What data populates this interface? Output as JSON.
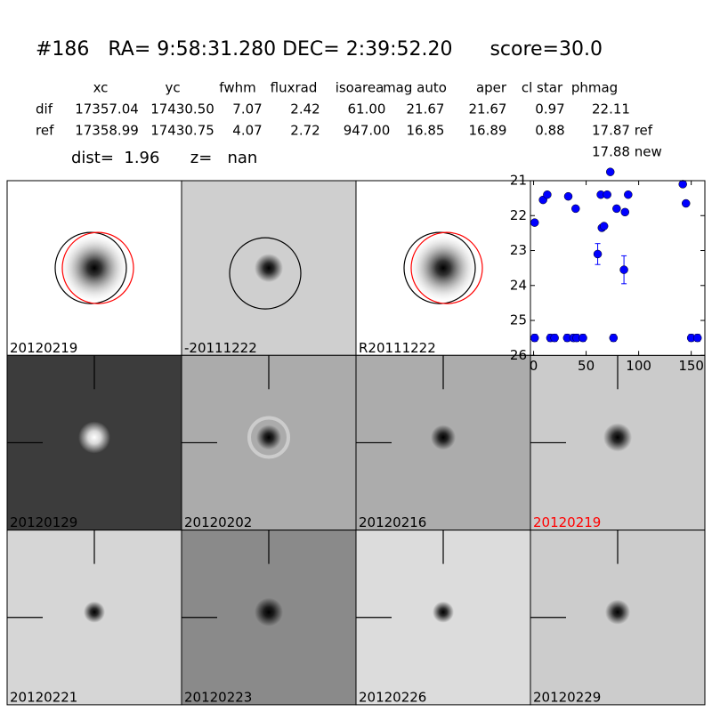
{
  "header": {
    "title": "#186   RA= 9:58:31.280 DEC= 2:39:52.20      score=30.0"
  },
  "table": {
    "columns": [
      "xc",
      "yc",
      "fwhm",
      "fluxrad",
      "isoarea",
      "mag auto",
      "aper",
      "cl star",
      "phmag"
    ],
    "rows": [
      [
        "dif",
        "17357.04",
        "17430.50",
        "7.07",
        "2.42",
        "61.00",
        "21.67",
        "21.67",
        "0.97",
        "22.11"
      ],
      [
        "ref",
        "17358.99",
        "17430.75",
        "4.07",
        "2.72",
        "947.00",
        "16.85",
        "16.89",
        "0.88",
        "17.87 ref"
      ]
    ],
    "extra": "17.88 new"
  },
  "dist_line": "dist=  1.96      z=   nan",
  "panels": [
    {
      "label": "20120219",
      "color": "#000000"
    },
    {
      "label": "-20111222",
      "color": "#000000"
    },
    {
      "label": "R20111222",
      "color": "#000000"
    },
    {
      "label": "20120129",
      "color": "#000000"
    },
    {
      "label": "20120202",
      "color": "#000000"
    },
    {
      "label": "20120216",
      "color": "#000000"
    },
    {
      "label": "20120219",
      "color": "#ff0000"
    },
    {
      "label": "20120221",
      "color": "#000000"
    },
    {
      "label": "20120223",
      "color": "#000000"
    },
    {
      "label": "20120226",
      "color": "#000000"
    },
    {
      "label": "20120229",
      "color": "#000000"
    }
  ],
  "chart_data": {
    "type": "scatter",
    "color": "#0000ff",
    "x": [
      1,
      9,
      13,
      33,
      40,
      61,
      64,
      65,
      67,
      70,
      73,
      79,
      86,
      87,
      90,
      142,
      145,
      1,
      16,
      20,
      32,
      38,
      41,
      47,
      76,
      150,
      156
    ],
    "values": [
      22.2,
      21.55,
      21.4,
      21.45,
      21.8,
      23.1,
      21.4,
      22.35,
      22.3,
      21.4,
      20.75,
      21.8,
      23.55,
      21.9,
      21.4,
      21.1,
      21.65,
      25.5,
      25.5,
      25.5,
      25.5,
      25.5,
      25.5,
      25.5,
      25.5,
      25.5,
      25.5
    ],
    "errors": [
      0.08,
      0.05,
      0.05,
      0.05,
      0.06,
      0.3,
      0.05,
      0.08,
      0.08,
      0.05,
      0.04,
      0.08,
      0.4,
      0.08,
      0.05,
      0.05,
      0.05,
      0.1,
      0.1,
      0.1,
      0.1,
      0.1,
      0.1,
      0.1,
      0.1,
      0.1,
      0.1
    ],
    "xlim": [
      -3,
      163
    ],
    "ylim": [
      21,
      26
    ],
    "y_inverted": true,
    "xticks": [
      0,
      50,
      100,
      150
    ],
    "yticks": [
      21,
      22,
      23,
      24,
      25,
      26
    ]
  }
}
